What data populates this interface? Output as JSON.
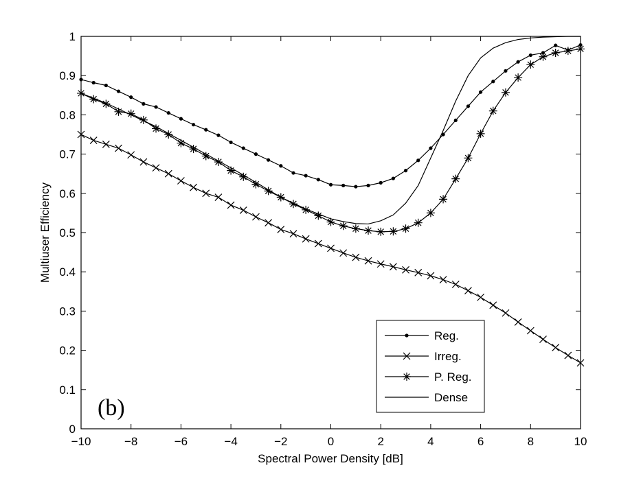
{
  "chart_data": {
    "type": "line",
    "title": "",
    "xlabel": "Spectral Power Density [dB]",
    "ylabel": "Multiuser Efficiency",
    "xlim": [
      -10,
      10
    ],
    "ylim": [
      0,
      1
    ],
    "xticks": [
      -10,
      -8,
      -6,
      -4,
      -2,
      0,
      2,
      4,
      6,
      8,
      10
    ],
    "yticks": [
      0,
      0.1,
      0.2,
      0.3,
      0.4,
      0.5,
      0.6,
      0.7,
      0.8,
      0.9,
      1
    ],
    "xtick_labels": [
      "−10",
      "−8",
      "−6",
      "−4",
      "−2",
      "0",
      "2",
      "4",
      "6",
      "8",
      "10"
    ],
    "ytick_labels": [
      "0",
      "0.1",
      "0.2",
      "0.3",
      "0.4",
      "0.5",
      "0.6",
      "0.7",
      "0.8",
      "0.9",
      "1"
    ],
    "grid": false,
    "legend_position": "bottom-right",
    "annotation": "(b)",
    "series": [
      {
        "name": "Reg.",
        "marker": "dot",
        "x": [
          -10,
          -9.5,
          -9,
          -8.5,
          -8,
          -7.5,
          -7,
          -6.5,
          -6,
          -5.5,
          -5,
          -4.5,
          -4,
          -3.5,
          -3,
          -2.5,
          -2,
          -1.5,
          -1,
          -0.5,
          0,
          0.5,
          1,
          1.5,
          2,
          2.5,
          3,
          3.5,
          4,
          4.5,
          5,
          5.5,
          6,
          6.5,
          7,
          7.5,
          8,
          8.5,
          9,
          9.5,
          10
        ],
        "y": [
          0.89,
          0.882,
          0.875,
          0.86,
          0.845,
          0.828,
          0.82,
          0.805,
          0.79,
          0.775,
          0.762,
          0.748,
          0.73,
          0.715,
          0.7,
          0.685,
          0.67,
          0.652,
          0.645,
          0.635,
          0.622,
          0.62,
          0.617,
          0.62,
          0.627,
          0.638,
          0.658,
          0.684,
          0.715,
          0.75,
          0.786,
          0.822,
          0.858,
          0.885,
          0.912,
          0.935,
          0.952,
          0.958,
          0.977,
          0.965,
          0.978
        ]
      },
      {
        "name": "Irreg.",
        "marker": "x",
        "x": [
          -10,
          -9.5,
          -9,
          -8.5,
          -8,
          -7.5,
          -7,
          -6.5,
          -6,
          -5.5,
          -5,
          -4.5,
          -4,
          -3.5,
          -3,
          -2.5,
          -2,
          -1.5,
          -1,
          -0.5,
          0,
          0.5,
          1,
          1.5,
          2,
          2.5,
          3,
          3.5,
          4,
          4.5,
          5,
          5.5,
          6,
          6.5,
          7,
          7.5,
          8,
          8.5,
          9,
          9.5,
          10
        ],
        "y": [
          0.75,
          0.735,
          0.725,
          0.715,
          0.698,
          0.68,
          0.665,
          0.65,
          0.632,
          0.615,
          0.6,
          0.59,
          0.57,
          0.557,
          0.54,
          0.525,
          0.508,
          0.497,
          0.484,
          0.472,
          0.46,
          0.448,
          0.437,
          0.428,
          0.42,
          0.413,
          0.405,
          0.398,
          0.39,
          0.38,
          0.368,
          0.352,
          0.335,
          0.315,
          0.295,
          0.272,
          0.25,
          0.228,
          0.207,
          0.187,
          0.168
        ]
      },
      {
        "name": "P. Reg.",
        "marker": "asterisk",
        "x": [
          -10,
          -9.5,
          -9,
          -8.5,
          -8,
          -7.5,
          -7,
          -6.5,
          -6,
          -5.5,
          -5,
          -4.5,
          -4,
          -3.5,
          -3,
          -2.5,
          -2,
          -1.5,
          -1,
          -0.5,
          0,
          0.5,
          1,
          1.5,
          2,
          2.5,
          3,
          3.5,
          4,
          4.5,
          5,
          5.5,
          6,
          6.5,
          7,
          7.5,
          8,
          8.5,
          9,
          9.5,
          10
        ],
        "y": [
          0.855,
          0.84,
          0.828,
          0.808,
          0.803,
          0.787,
          0.765,
          0.75,
          0.728,
          0.713,
          0.695,
          0.68,
          0.658,
          0.642,
          0.623,
          0.606,
          0.59,
          0.573,
          0.558,
          0.543,
          0.527,
          0.517,
          0.51,
          0.505,
          0.502,
          0.503,
          0.51,
          0.525,
          0.55,
          0.585,
          0.637,
          0.69,
          0.752,
          0.81,
          0.857,
          0.895,
          0.928,
          0.948,
          0.958,
          0.963,
          0.968
        ]
      },
      {
        "name": "Dense",
        "marker": "none",
        "x": [
          -10,
          -9,
          -8,
          -7,
          -6,
          -5,
          -4,
          -3,
          -2,
          -1,
          0,
          0.5,
          1,
          1.5,
          2,
          2.5,
          3,
          3.5,
          4,
          4.25,
          4.5,
          5,
          5.5,
          6,
          6.5,
          7,
          7.5,
          8,
          8.5,
          9,
          9.5,
          10
        ],
        "y": [
          0.855,
          0.83,
          0.8,
          0.77,
          0.735,
          0.7,
          0.665,
          0.628,
          0.59,
          0.56,
          0.535,
          0.528,
          0.523,
          0.522,
          0.53,
          0.545,
          0.575,
          0.62,
          0.69,
          0.725,
          0.76,
          0.835,
          0.9,
          0.945,
          0.97,
          0.984,
          0.992,
          0.996,
          0.998,
          0.999,
          1.0,
          1.0
        ]
      }
    ]
  }
}
